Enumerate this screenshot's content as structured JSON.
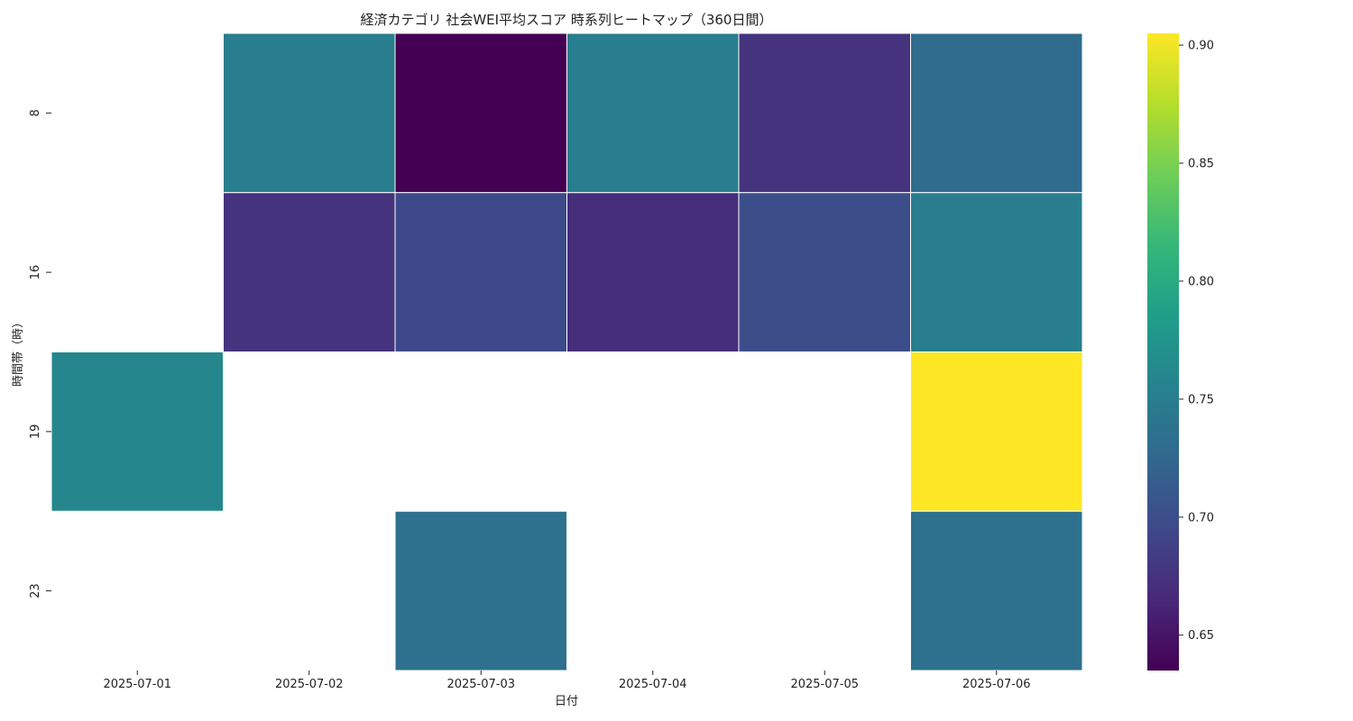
{
  "chart_data": {
    "type": "heatmap",
    "title": "経済カテゴリ 社会WEI平均スコア 時系列ヒートマップ（360日間）",
    "xlabel": "日付",
    "ylabel": "時間帯（時）",
    "x": [
      "2025-07-01",
      "2025-07-02",
      "2025-07-03",
      "2025-07-04",
      "2025-07-05",
      "2025-07-06"
    ],
    "y": [
      "8",
      "16",
      "19",
      "23"
    ],
    "values": [
      [
        null,
        0.75,
        0.635,
        0.75,
        0.675,
        0.73
      ],
      [
        null,
        0.675,
        0.695,
        0.67,
        0.7,
        0.75
      ],
      [
        0.76,
        null,
        null,
        null,
        null,
        0.905
      ],
      [
        null,
        null,
        0.735,
        null,
        null,
        0.735
      ]
    ],
    "colormap": "viridis",
    "vmin": 0.635,
    "vmax": 0.905,
    "colorbar_ticks": [
      "0.65",
      "0.70",
      "0.75",
      "0.80",
      "0.85",
      "0.90"
    ],
    "colorbar_tick_values": [
      0.65,
      0.7,
      0.75,
      0.8,
      0.85,
      0.9
    ],
    "missing_color": "#ffffff",
    "cell_border_color": "#ffffff"
  }
}
